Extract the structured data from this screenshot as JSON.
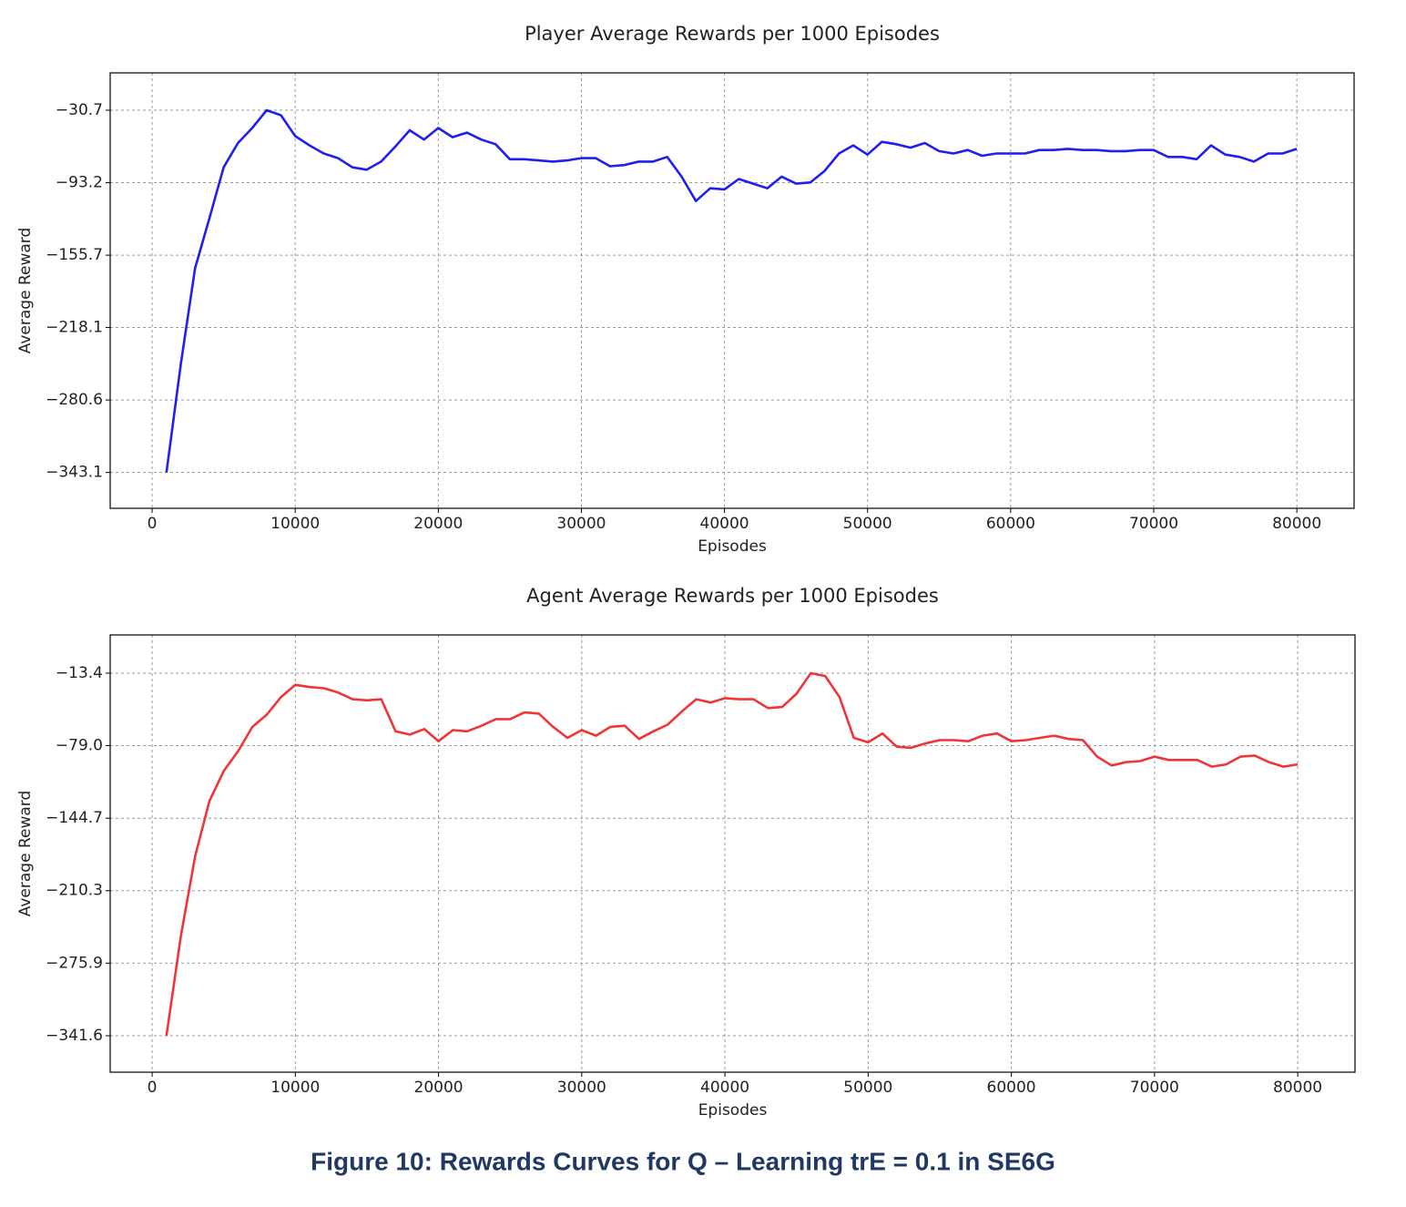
{
  "chart_data": [
    {
      "type": "line",
      "title": "Player Average Rewards per 1000 Episodes",
      "x_label": "Episodes",
      "y_label": "Average Reward",
      "x": [
        1000,
        2000,
        3000,
        4000,
        5000,
        6000,
        7000,
        8000,
        9000,
        10000,
        11000,
        12000,
        13000,
        14000,
        15000,
        16000,
        17000,
        18000,
        19000,
        20000,
        21000,
        22000,
        23000,
        24000,
        25000,
        26000,
        27000,
        28000,
        29000,
        30000,
        31000,
        32000,
        33000,
        34000,
        35000,
        36000,
        37000,
        38000,
        39000,
        40000,
        41000,
        42000,
        43000,
        44000,
        45000,
        46000,
        47000,
        48000,
        49000,
        50000,
        51000,
        52000,
        53000,
        54000,
        55000,
        56000,
        57000,
        58000,
        59000,
        60000,
        61000,
        62000,
        63000,
        64000,
        65000,
        66000,
        67000,
        68000,
        69000,
        70000,
        71000,
        72000,
        73000,
        74000,
        75000,
        76000,
        77000,
        78000,
        79000,
        80000
      ],
      "series": [
        {
          "name": "Player",
          "color": "#1f1fef",
          "values": [
            -343.1,
            -250,
            -167,
            -124,
            -80,
            -59,
            -46,
            -30.7,
            -35,
            -53,
            -61,
            -68,
            -72,
            -80,
            -82,
            -75,
            -62,
            -48,
            -56,
            -46,
            -54,
            -50,
            -56,
            -60,
            -73,
            -73,
            -74,
            -75,
            -74,
            -72,
            -72,
            -79,
            -78,
            -75,
            -75,
            -71,
            -88,
            -109,
            -98,
            -99,
            -90,
            -94,
            -98,
            -88,
            -94,
            -93,
            -83,
            -68,
            -61,
            -69,
            -58,
            -60,
            -63,
            -59,
            -66,
            -68,
            -65,
            -70,
            -68,
            -68,
            -68,
            -65,
            -65,
            -64,
            -65,
            -65,
            -66,
            -66,
            -65,
            -65,
            -71,
            -71,
            -73,
            -61,
            -69,
            -71,
            -75,
            -68,
            -68,
            -64
          ]
        }
      ],
      "xlim": [
        -2930,
        84000
      ],
      "xticks": [
        0,
        10000,
        20000,
        30000,
        40000,
        50000,
        60000,
        70000,
        80000
      ],
      "ylim": [
        -374,
        1.5
      ],
      "yticks": [
        {
          "value": -343.1,
          "label": "−343.1"
        },
        {
          "value": -280.6,
          "label": "−280.6"
        },
        {
          "value": -218.1,
          "label": "−218.1"
        },
        {
          "value": -155.7,
          "label": "−155.7"
        },
        {
          "value": -93.2,
          "label": "−93.2"
        },
        {
          "value": -30.7,
          "label": "−30.7"
        }
      ],
      "grid": true
    },
    {
      "type": "line",
      "title": "Agent Average Rewards per 1000 Episodes",
      "x_label": "Episodes",
      "y_label": "Average Reward",
      "x": [
        1000,
        2000,
        3000,
        4000,
        5000,
        6000,
        7000,
        8000,
        9000,
        10000,
        11000,
        12000,
        13000,
        14000,
        15000,
        16000,
        17000,
        18000,
        19000,
        20000,
        21000,
        22000,
        23000,
        24000,
        25000,
        26000,
        27000,
        28000,
        29000,
        30000,
        31000,
        32000,
        33000,
        34000,
        35000,
        36000,
        37000,
        38000,
        39000,
        40000,
        41000,
        42000,
        43000,
        44000,
        45000,
        46000,
        47000,
        48000,
        49000,
        50000,
        51000,
        52000,
        53000,
        54000,
        55000,
        56000,
        57000,
        58000,
        59000,
        60000,
        61000,
        62000,
        63000,
        64000,
        65000,
        66000,
        67000,
        68000,
        69000,
        70000,
        71000,
        72000,
        73000,
        74000,
        75000,
        76000,
        77000,
        78000,
        79000,
        80000
      ],
      "series": [
        {
          "name": "Agent",
          "color": "#ef3535",
          "values": [
            -341.6,
            -252,
            -179,
            -129,
            -102,
            -84,
            -62,
            -51,
            -35,
            -24,
            -26,
            -27,
            -31,
            -37,
            -38,
            -37,
            -66,
            -69,
            -64,
            -75,
            -65,
            -66,
            -61,
            -55,
            -55,
            -49,
            -50,
            -62,
            -72,
            -65,
            -70,
            -62,
            -61,
            -73,
            -66,
            -60,
            -48,
            -37,
            -40,
            -36,
            -37,
            -37,
            -45,
            -44,
            -32,
            -13.4,
            -16,
            -35,
            -72,
            -76,
            -68,
            -80,
            -81,
            -77,
            -74,
            -74,
            -75,
            -70,
            -68,
            -75,
            -74,
            -72,
            -70,
            -73,
            -74,
            -89,
            -97,
            -94,
            -93,
            -89,
            -92,
            -92,
            -92,
            -98,
            -96,
            -89,
            -88,
            -94,
            -98,
            -96
          ]
        }
      ],
      "xlim": [
        -2930,
        84000
      ],
      "xticks": [
        0,
        10000,
        20000,
        30000,
        40000,
        50000,
        60000,
        70000,
        80000
      ],
      "ylim": [
        -374.6,
        21.2
      ],
      "yticks": [
        {
          "value": -341.6,
          "label": "−341.6"
        },
        {
          "value": -275.9,
          "label": "−275.9"
        },
        {
          "value": -210.3,
          "label": "−210.3"
        },
        {
          "value": -144.7,
          "label": "−144.7"
        },
        {
          "value": -79.0,
          "label": "−79.0"
        },
        {
          "value": -13.4,
          "label": "−13.4"
        }
      ],
      "grid": true
    }
  ],
  "caption": "Figure 10: Rewards Curves for Q – Learning trE = 0.1 in SE6G"
}
